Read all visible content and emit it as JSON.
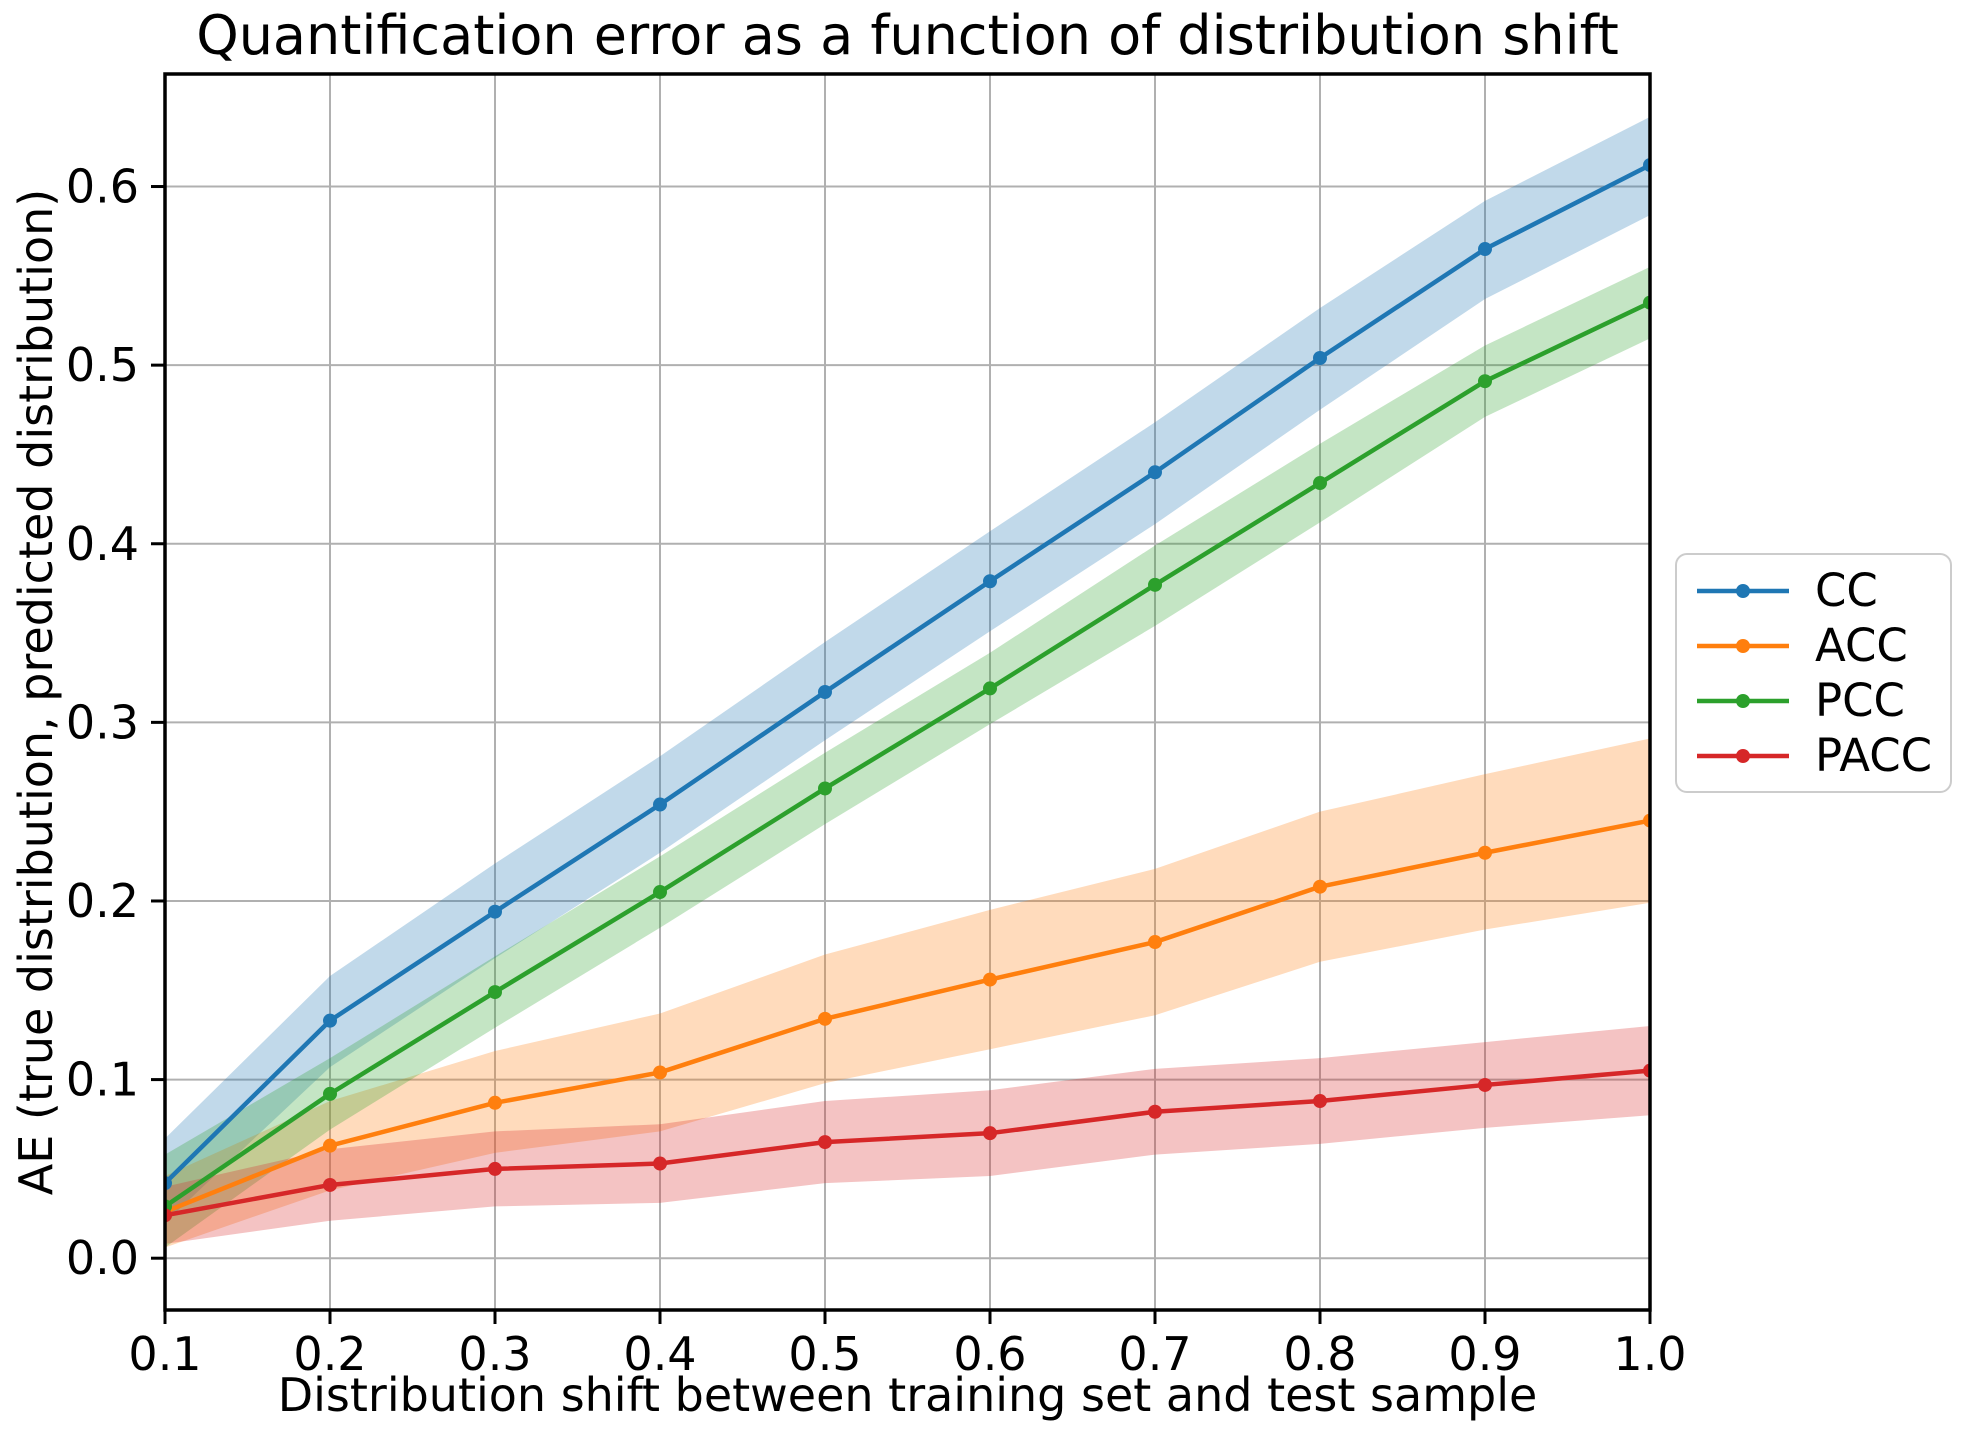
{
  "figure": {
    "background": "#ffffff"
  },
  "chart_data": {
    "type": "line",
    "title": "Quantification error as a function of distribution shift",
    "xlabel": "Distribution shift between training set and test sample",
    "ylabel": "AE (true distribution, predicted distribution)",
    "xlim": [
      0.1,
      1.0
    ],
    "ylim": [
      -0.029,
      0.663
    ],
    "grid": true,
    "grid_color": "#b0b0b0",
    "axis_color": "#000000",
    "legend_position": "outside center right",
    "band_opacity": 0.28,
    "x": [
      0.1,
      0.2,
      0.3,
      0.4,
      0.5,
      0.6,
      0.7,
      0.8,
      0.9,
      1.0
    ],
    "x_ticks": [
      {
        "v": 0.1,
        "label": "0.1"
      },
      {
        "v": 0.2,
        "label": "0.2"
      },
      {
        "v": 0.3,
        "label": "0.3"
      },
      {
        "v": 0.4,
        "label": "0.4"
      },
      {
        "v": 0.5,
        "label": "0.5"
      },
      {
        "v": 0.6,
        "label": "0.6"
      },
      {
        "v": 0.7,
        "label": "0.7"
      },
      {
        "v": 0.8,
        "label": "0.8"
      },
      {
        "v": 0.9,
        "label": "0.9"
      },
      {
        "v": 1.0,
        "label": "1.0"
      }
    ],
    "y_ticks": [
      {
        "v": 0.0,
        "label": "0.0"
      },
      {
        "v": 0.1,
        "label": "0.1"
      },
      {
        "v": 0.2,
        "label": "0.2"
      },
      {
        "v": 0.3,
        "label": "0.3"
      },
      {
        "v": 0.4,
        "label": "0.4"
      },
      {
        "v": 0.5,
        "label": "0.5"
      },
      {
        "v": 0.6,
        "label": "0.6"
      }
    ],
    "series": [
      {
        "name": "CC",
        "color": "#1f77b4",
        "values": [
          0.042,
          0.133,
          0.194,
          0.254,
          0.317,
          0.379,
          0.44,
          0.504,
          0.565,
          0.612
        ],
        "band_lower": [
          0.02,
          0.107,
          0.168,
          0.227,
          0.29,
          0.351,
          0.411,
          0.475,
          0.537,
          0.584
        ],
        "band_upper": [
          0.067,
          0.158,
          0.221,
          0.281,
          0.345,
          0.407,
          0.468,
          0.532,
          0.592,
          0.639
        ]
      },
      {
        "name": "ACC",
        "color": "#ff7f0e",
        "values": [
          0.026,
          0.063,
          0.087,
          0.104,
          0.134,
          0.156,
          0.177,
          0.208,
          0.227,
          0.245
        ],
        "band_lower": [
          0.006,
          0.038,
          0.059,
          0.071,
          0.098,
          0.117,
          0.136,
          0.166,
          0.184,
          0.199
        ],
        "band_upper": [
          0.046,
          0.088,
          0.116,
          0.137,
          0.17,
          0.195,
          0.218,
          0.25,
          0.271,
          0.291
        ]
      },
      {
        "name": "PCC",
        "color": "#2ca02c",
        "values": [
          0.029,
          0.092,
          0.149,
          0.205,
          0.263,
          0.319,
          0.377,
          0.434,
          0.491,
          0.535
        ],
        "band_lower": [
          0.006,
          0.072,
          0.129,
          0.185,
          0.243,
          0.299,
          0.354,
          0.412,
          0.471,
          0.515
        ],
        "band_upper": [
          0.058,
          0.112,
          0.169,
          0.225,
          0.283,
          0.339,
          0.399,
          0.456,
          0.511,
          0.555
        ]
      },
      {
        "name": "PACC",
        "color": "#d62728",
        "values": [
          0.024,
          0.041,
          0.05,
          0.053,
          0.065,
          0.07,
          0.082,
          0.088,
          0.097,
          0.105
        ],
        "band_lower": [
          0.008,
          0.021,
          0.029,
          0.031,
          0.042,
          0.046,
          0.058,
          0.064,
          0.073,
          0.08
        ],
        "band_upper": [
          0.04,
          0.061,
          0.071,
          0.075,
          0.088,
          0.094,
          0.106,
          0.112,
          0.121,
          0.13
        ]
      }
    ]
  }
}
